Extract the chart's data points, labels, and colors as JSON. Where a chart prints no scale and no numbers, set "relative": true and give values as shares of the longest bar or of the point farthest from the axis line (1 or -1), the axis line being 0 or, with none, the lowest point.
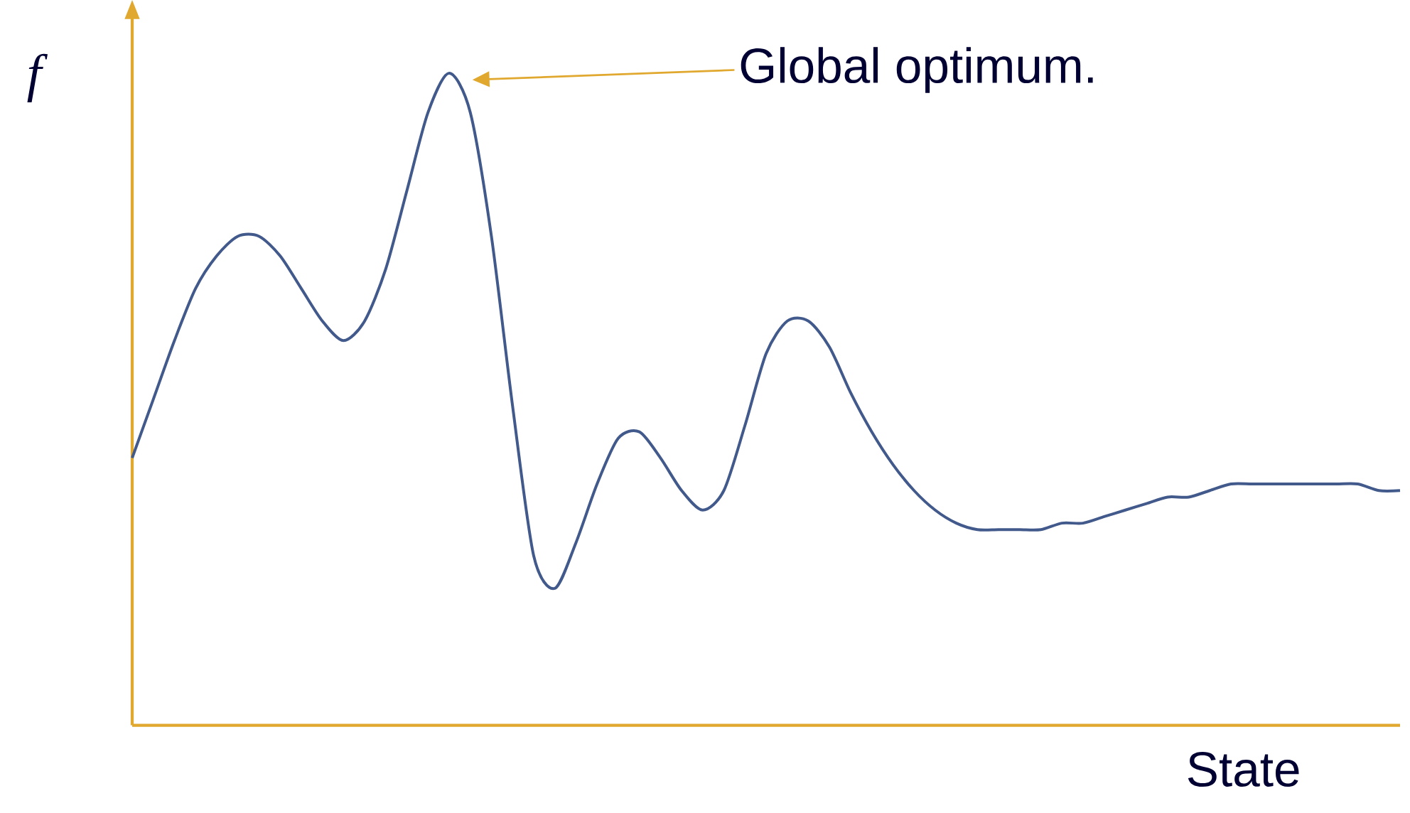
{
  "chart_data": {
    "type": "line",
    "relative": true,
    "xlabel": "State",
    "ylabel": "f",
    "categories": [
      null,
      null,
      null,
      null,
      null,
      null,
      null,
      null,
      null,
      null,
      null,
      null,
      null,
      null,
      null,
      null,
      null,
      null,
      null,
      null,
      null,
      null,
      null,
      null,
      null,
      null,
      null,
      null,
      null,
      null,
      null,
      null,
      null,
      null,
      null,
      null,
      null,
      null,
      null,
      null,
      null,
      null,
      null,
      null,
      null,
      null,
      null,
      null,
      null,
      null,
      null,
      null,
      null,
      null,
      null,
      null,
      null,
      null,
      null,
      null,
      null
    ],
    "series": [
      {
        "color": "#41598b",
        "values": [
          0.41,
          0.5,
          0.59,
          0.67,
          0.72,
          0.75,
          0.75,
          0.72,
          0.67,
          0.62,
          0.59,
          0.62,
          0.7,
          0.82,
          0.94,
          1.0,
          0.94,
          0.75,
          0.49,
          0.26,
          0.21,
          0.28,
          0.37,
          0.44,
          0.45,
          0.41,
          0.36,
          0.33,
          0.36,
          0.46,
          0.57,
          0.62,
          0.62,
          0.58,
          0.51,
          0.45,
          0.4,
          0.36,
          0.33,
          0.31,
          0.3,
          0.3,
          0.3,
          0.3,
          0.31,
          0.31,
          0.32,
          0.33,
          0.34,
          0.35,
          0.35,
          0.36,
          0.37,
          0.37,
          0.37,
          0.37,
          0.37,
          0.37,
          0.37,
          0.36,
          0.36
        ]
      }
    ],
    "annotations": [
      "Global optimum."
    ],
    "marker": "none",
    "line_style": "solid",
    "grid": false,
    "legend": false
  }
}
